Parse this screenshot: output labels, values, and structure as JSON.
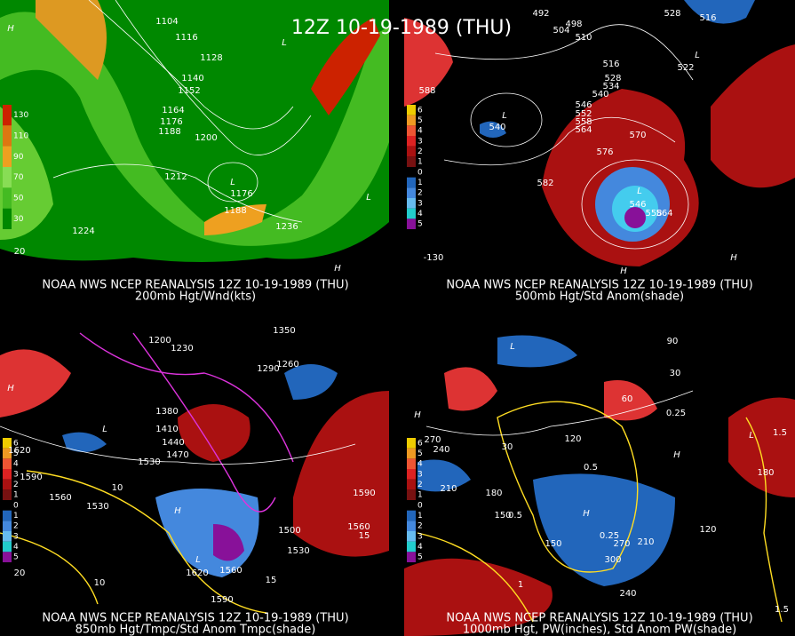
{
  "title": "12Z 10-19-1989 (THU)",
  "panels": [
    {
      "source": "NOAA NWS NCEP REANALYSIS 12Z 10-19-1989 (THU)",
      "caption": "200mb Hgt/Wnd(kts)",
      "legend": [
        130,
        110,
        90,
        70,
        50,
        30
      ],
      "labels": [
        "1104",
        "1116",
        "1128",
        "1140",
        "1152",
        "1164",
        "1176",
        "1188",
        "1200",
        "1212",
        "1224",
        "1236",
        "1176",
        "1188",
        "L",
        "L",
        "L",
        "H",
        "H",
        "20"
      ]
    },
    {
      "source": "NOAA NWS NCEP REANALYSIS 12Z 10-19-1989 (THU)",
      "caption": "500mb Hgt/Std Anom(shade)",
      "legend": [
        6,
        5,
        4,
        3,
        2,
        1,
        0,
        1,
        2,
        3,
        4,
        5
      ],
      "labels": [
        "492",
        "498",
        "504",
        "528",
        "516",
        "510",
        "516",
        "522",
        "588",
        "528",
        "534",
        "540",
        "546",
        "552",
        "558",
        "564",
        "570",
        "576",
        "582",
        "540",
        "546",
        "558",
        "564",
        "L",
        "L",
        "L",
        "H",
        "H",
        "-130"
      ]
    },
    {
      "source": "NOAA NWS NCEP REANALYSIS 12Z 10-19-1989 (THU)",
      "caption": "850mb Hgt/Tmpc/Std Anom Tmpc(shade)",
      "legend": [
        6,
        5,
        4,
        3,
        2,
        1,
        0,
        1,
        2,
        3,
        4,
        5
      ],
      "labels": [
        "1350",
        "1200",
        "1230",
        "1290",
        "1260",
        "1380",
        "1410",
        "1440",
        "1470",
        "1530",
        "1620",
        "1590",
        "1560",
        "1530",
        "1590",
        "1560",
        "1530",
        "1500",
        "1560",
        "1620",
        "1590",
        "10",
        "10",
        "15",
        "15",
        "20",
        "L",
        "L",
        "H",
        "H"
      ]
    },
    {
      "source": "NOAA NWS NCEP REANALYSIS 12Z 10-19-1989 (THU)",
      "caption": "1000mb Hgt, PW(inches), Std Anom PW(shade)",
      "legend": [
        6,
        5,
        4,
        3,
        2,
        1,
        0,
        1,
        2,
        3,
        4,
        5
      ],
      "labels": [
        "90",
        "60",
        "30",
        "30",
        "120",
        "270",
        "240",
        "210",
        "180",
        "150",
        "150",
        "270",
        "210",
        "300",
        "240",
        "120",
        "180",
        "0.25",
        "0.5",
        "0.5",
        "0.25",
        "1",
        "1.5",
        "1.5",
        "L",
        "L",
        "H",
        "H",
        "H"
      ]
    }
  ]
}
